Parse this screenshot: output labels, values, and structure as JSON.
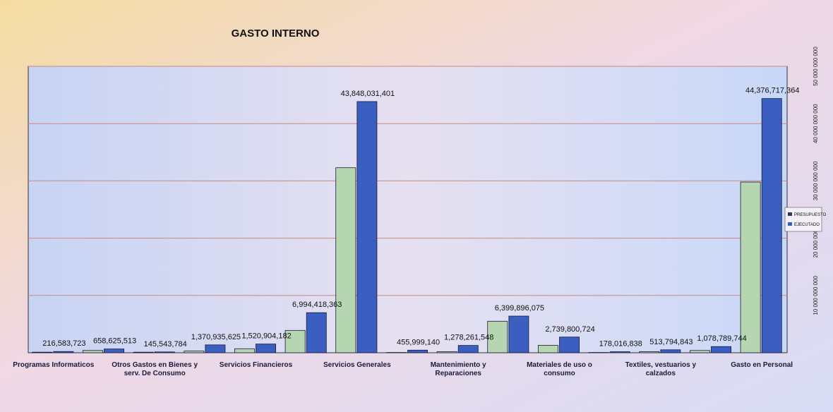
{
  "chart_data": {
    "type": "bar",
    "title": "GASTO INTERNO",
    "categories": [
      "Programas Informaticos",
      null,
      "Otros Gastos en Bienes y serv. De Consumo",
      null,
      "Servicios Financieros",
      null,
      "Servicios Generales",
      null,
      "Mantenimiento y Reparaciones",
      null,
      "Materiales de uso o consumo",
      null,
      "Textiles, vestuarios y calzados",
      null,
      "Gasto en Personal"
    ],
    "series": [
      {
        "name": "PRESUPUESTO",
        "color": "#b5d6b0",
        "values": [
          100000000,
          400000000,
          100000000,
          300000000,
          700000000,
          3900000000,
          32300000000,
          50000000,
          200000000,
          5500000000,
          1300000000,
          50000000,
          200000000,
          400000000,
          29800000000
        ]
      },
      {
        "name": "EJECUTADO",
        "color": "#3a5fc0",
        "values": [
          216583723,
          658625513,
          145543784,
          1370935625,
          1520904182,
          6994418363,
          43848031401,
          455999140,
          1278261548,
          6399896075,
          2739800724,
          178016838,
          513794843,
          1078789744,
          44376717364
        ],
        "value_labels": [
          "216,583,723",
          "658,625,513",
          "145,543,784",
          "1,370,935,625",
          "1,520,904,182",
          "6,994,418,363",
          "43,848,031,401",
          "455,999,140",
          "1,278,261,548",
          "6,399,896,075",
          "2,739,800,724",
          "178,016,838",
          "513,794,843",
          "1,078,789,744",
          "44,376,717,364"
        ]
      }
    ],
    "ylim": [
      0,
      50000000000
    ],
    "yticks": [
      {
        "value": 10000000000,
        "label": "10 000 000 000"
      },
      {
        "value": 20000000000,
        "label": "20 000 000 000"
      },
      {
        "value": 30000000000,
        "label": "30 000 000 000"
      },
      {
        "value": 40000000000,
        "label": "40 000 000 000"
      },
      {
        "value": 50000000000,
        "label": "50 000 000 000"
      }
    ],
    "grid": true,
    "legend": "right"
  }
}
